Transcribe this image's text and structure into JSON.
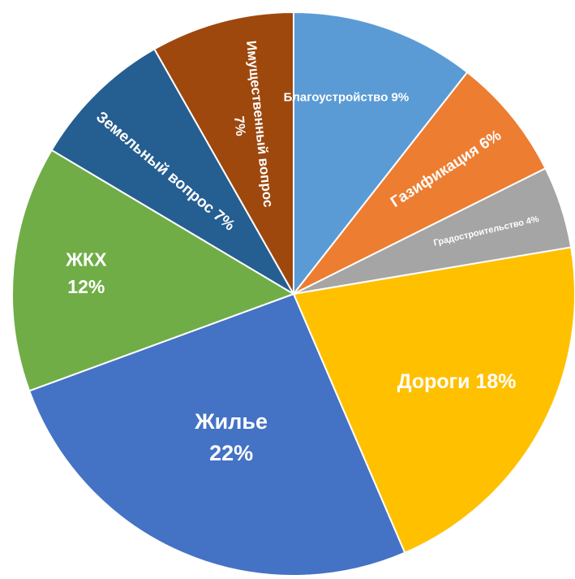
{
  "chart_data": {
    "type": "pie",
    "start_angle_deg": 0,
    "direction": "clockwise",
    "slices": [
      {
        "label": "Благоустройство",
        "value": 9,
        "color": "#5B9BD5",
        "text_lines": [
          "Благоустройство 9%"
        ]
      },
      {
        "label": "Газификация",
        "value": 6,
        "color": "#ED7D31",
        "text_lines": [
          "Газификация 6%"
        ]
      },
      {
        "label": "Градостроительство",
        "value": 4,
        "color": "#A5A5A5",
        "text_lines": [
          "Градостроительство 4%"
        ]
      },
      {
        "label": "Дороги",
        "value": 18,
        "color": "#FFC000",
        "text_lines": [
          "Дороги 18%"
        ]
      },
      {
        "label": "Жилье",
        "value": 22,
        "color": "#4472C4",
        "text_lines": [
          "Жилье",
          "22%"
        ]
      },
      {
        "label": "ЖКХ",
        "value": 12,
        "color": "#70AD47",
        "text_lines": [
          "ЖКХ",
          "12%"
        ]
      },
      {
        "label": "Земельный вопрос",
        "value": 7,
        "color": "#255E91",
        "text_lines": [
          "Земельный вопрос 7%"
        ]
      },
      {
        "label": "Имущественный вопрос",
        "value": 7,
        "color": "#9E480E",
        "text_lines": [
          "Имущественный вопрос",
          "7%"
        ]
      }
    ]
  }
}
